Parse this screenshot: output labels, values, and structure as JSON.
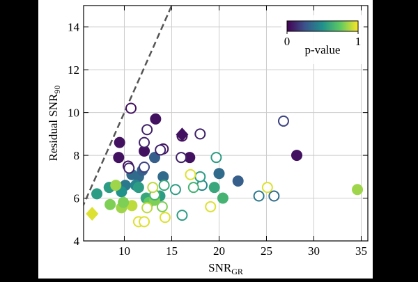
{
  "chart_data": {
    "type": "scatter",
    "xlabel": {
      "text": "SNR",
      "subscript": "GR"
    },
    "ylabel": {
      "text": "Residual SNR",
      "subscript": "90"
    },
    "xlim": [
      5.7,
      35.7
    ],
    "xticks": [
      10,
      15,
      20,
      25,
      30,
      35
    ],
    "ylim": [
      4,
      15
    ],
    "yticks": [
      4,
      6,
      8,
      10,
      12,
      14
    ],
    "grid": true,
    "identity_line": true,
    "colormap": "viridis",
    "colorbar": {
      "label": "p-value",
      "lim": [
        0,
        1
      ],
      "ticks": [
        0,
        1
      ],
      "corner": "upper right"
    },
    "series": [
      {
        "marker": "filled-circle",
        "x": [
          9.5,
          9.4,
          13.3,
          12.1,
          16.9,
          28.2,
          20.0,
          22.0,
          14.1,
          13.2,
          10.8,
          11.5,
          11.9,
          10.1,
          11.2,
          8.4,
          7.1,
          9.7,
          11.5,
          13.75,
          19.5,
          20.4,
          12.3,
          8.5,
          9.7,
          10.8,
          12.6,
          9.1,
          9.9,
          34.6,
          13.2
        ],
        "y": [
          8.6,
          7.9,
          9.7,
          8.2,
          7.9,
          8.0,
          7.15,
          6.8,
          7.0,
          7.9,
          7.1,
          7.0,
          7.3,
          6.6,
          6.6,
          6.5,
          6.2,
          6.3,
          6.5,
          6.1,
          6.5,
          6.0,
          6.0,
          5.7,
          5.55,
          5.65,
          5.8,
          6.6,
          5.8,
          6.4,
          5.9
        ],
        "c": [
          0.05,
          0.05,
          0.05,
          0.05,
          0.05,
          0.05,
          0.35,
          0.3,
          0.35,
          0.3,
          0.35,
          0.35,
          0.3,
          0.4,
          0.45,
          0.55,
          0.55,
          0.5,
          0.55,
          0.55,
          0.6,
          0.65,
          0.6,
          0.8,
          0.85,
          0.9,
          0.75,
          0.85,
          0.8,
          0.85,
          0.8
        ]
      },
      {
        "marker": "open-circle",
        "x": [
          10.7,
          12.4,
          12.1,
          14.1,
          13.8,
          16.1,
          18.0,
          16.0,
          10.4,
          10.5,
          12.1,
          26.8,
          24.2,
          25.8,
          18.2,
          19.7,
          18.0,
          16.1,
          15.4,
          14.2,
          13.2,
          17.3,
          16.98,
          25.1,
          19.1,
          14.3,
          11.5,
          12.1,
          12.4,
          13.0,
          14.0
        ],
        "y": [
          10.2,
          9.2,
          8.6,
          8.3,
          8.25,
          8.9,
          9.0,
          7.9,
          7.5,
          7.4,
          7.45,
          9.6,
          6.1,
          6.1,
          6.6,
          7.9,
          7.0,
          5.2,
          6.4,
          6.6,
          6.15,
          6.5,
          7.1,
          6.5,
          5.6,
          5.1,
          4.9,
          4.9,
          5.55,
          6.5,
          5.6
        ],
        "c": [
          0.05,
          0.1,
          0.1,
          0.05,
          0.1,
          0.05,
          0.1,
          0.1,
          0.05,
          0.1,
          0.2,
          0.2,
          0.4,
          0.35,
          0.45,
          0.55,
          0.55,
          0.55,
          0.55,
          0.6,
          0.65,
          0.65,
          0.95,
          0.95,
          0.95,
          0.95,
          0.95,
          0.95,
          0.9,
          0.9,
          0.8
        ]
      },
      {
        "marker": "diamond",
        "x": [
          16.1,
          6.6
        ],
        "y": [
          8.97,
          5.27
        ],
        "c": [
          0.05,
          0.95
        ]
      }
    ]
  }
}
